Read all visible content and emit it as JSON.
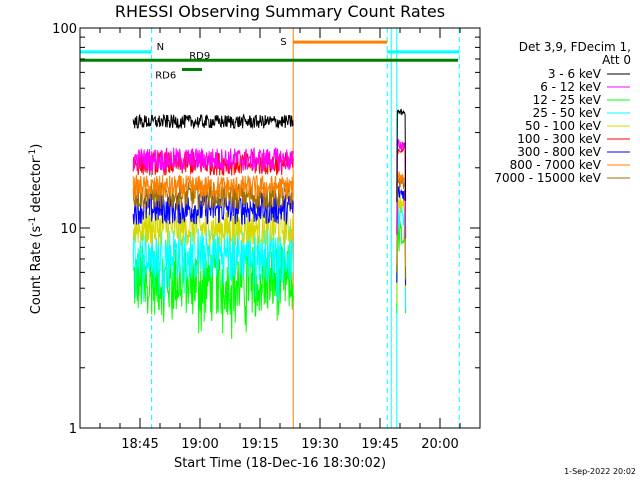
{
  "chart_data": {
    "type": "line",
    "title": "RHESSI Observing Summary Count Rates",
    "xlabel": "Start Time (18-Dec-16 18:30:02)",
    "ylabel_main": "Count Rate (s",
    "ylabel_sup1": "-1",
    "ylabel_mid": " detector",
    "ylabel_sup2": "-1",
    "ylabel_end": ")",
    "yscale": "log",
    "xlim_minutes_after_1830": [
      0,
      100
    ],
    "ylim": [
      1,
      100
    ],
    "x_ticks": [
      {
        "label": "18:45",
        "minutes": 15
      },
      {
        "label": "19:00",
        "minutes": 30
      },
      {
        "label": "19:15",
        "minutes": 45
      },
      {
        "label": "19:30",
        "minutes": 60
      },
      {
        "label": "19:45",
        "minutes": 75
      },
      {
        "label": "20:00",
        "minutes": 90
      }
    ],
    "y_ticks": [
      {
        "label": "1",
        "value": 1
      },
      {
        "label": "10",
        "value": 10
      },
      {
        "label": "100",
        "value": 100
      }
    ],
    "legend_header": [
      "Det 3,9, FDecim 1,",
      "Att 0"
    ],
    "legend_placement": "right",
    "series": [
      {
        "name": "3 - 6 keV",
        "color": "#000000",
        "level1": 34,
        "level2": 38
      },
      {
        "name": "6 - 12 keV",
        "color": "#ff00ff",
        "level1": 22,
        "level2": 26
      },
      {
        "name": "12 - 25 keV",
        "color": "#00ff00",
        "level1": 5.5,
        "level2": 9
      },
      {
        "name": "25 - 50 keV",
        "color": "#00ffff",
        "level1": 7.5,
        "level2": 11
      },
      {
        "name": "50 - 100 keV",
        "color": "#d8d800",
        "level1": 10,
        "level2": 13
      },
      {
        "name": "100 - 300 keV",
        "color": "#ff0000",
        "level1": 21,
        "level2": 25
      },
      {
        "name": "300 - 800 keV",
        "color": "#0000ff",
        "level1": 12.5,
        "level2": 15
      },
      {
        "name": "800 - 7000 keV",
        "color": "#ff8000",
        "level1": 16,
        "level2": 18
      },
      {
        "name": "7000 - 15000 keV",
        "color": "#a07000",
        "level1": 14.5,
        "level2": 17
      }
    ],
    "data_intervals_minutes": [
      [
        13.3,
        53.3
      ],
      [
        79.2,
        81.4
      ]
    ],
    "flags": [
      {
        "label": "N",
        "color": "#00ffff",
        "segments": [
          [
            0,
            17.9
          ],
          [
            76.8,
            94.8
          ]
        ],
        "value": 76
      },
      {
        "label": "S",
        "color": "#ff8000",
        "segments": [
          [
            53.3,
            76.8
          ]
        ],
        "value": 85
      },
      {
        "label": "RD9",
        "color": "#008000",
        "value": 69
      },
      {
        "label": "RD6",
        "color": "#008000",
        "segment": [
          25.5,
          30.5
        ],
        "value": 62
      }
    ],
    "vertical_lines": [
      {
        "minutes": 0,
        "color": "#00ffff",
        "dashed": false
      },
      {
        "minutes": 17.9,
        "color": "#00ffff",
        "dashed": true
      },
      {
        "minutes": 53.3,
        "color": "#ff8000",
        "dashed": false
      },
      {
        "minutes": 76.8,
        "color": "#00ffff",
        "dashed": true
      },
      {
        "minutes": 77.8,
        "color": "#00ffff",
        "dashed": false
      },
      {
        "minutes": 79.2,
        "color": "#00ffff",
        "dashed": false
      },
      {
        "minutes": 94.8,
        "color": "#00ffff",
        "dashed": true
      }
    ],
    "timestamp": "1-Sep-2022 20:02"
  }
}
